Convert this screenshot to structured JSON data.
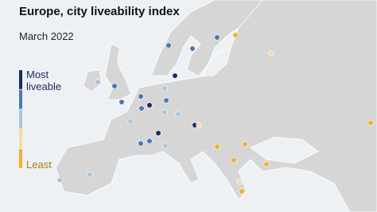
{
  "title": "Europe, city liveability index",
  "subtitle": "March 2022",
  "legend": {
    "top_label": "Most liveable",
    "bottom_label": "Least",
    "colors": [
      "#1b2b63",
      "#4a79b2",
      "#a9c5de",
      "#f9d9a3",
      "#f0b12c"
    ]
  },
  "cities": [
    {
      "class": 1
    },
    {
      "class": 1
    },
    {
      "class": 1
    },
    {
      "class": 4
    },
    {
      "class": 3
    },
    {
      "class": 0
    },
    {
      "class": 2
    },
    {
      "class": 1
    },
    {
      "class": 2
    },
    {
      "class": 1
    },
    {
      "class": 1
    },
    {
      "class": 0
    },
    {
      "class": 1
    },
    {
      "class": 1
    },
    {
      "class": 2
    },
    {
      "class": 2
    },
    {
      "class": 0
    },
    {
      "class": 3
    },
    {
      "class": 2
    },
    {
      "class": 0
    },
    {
      "class": 1
    },
    {
      "class": 1
    },
    {
      "class": 2
    },
    {
      "class": 4
    },
    {
      "class": 4
    },
    {
      "class": 4
    },
    {
      "class": 4
    },
    {
      "class": 4
    },
    {
      "class": 2
    },
    {
      "class": 2
    },
    {
      "class": 4
    },
    {
      "class": 3
    }
  ]
}
